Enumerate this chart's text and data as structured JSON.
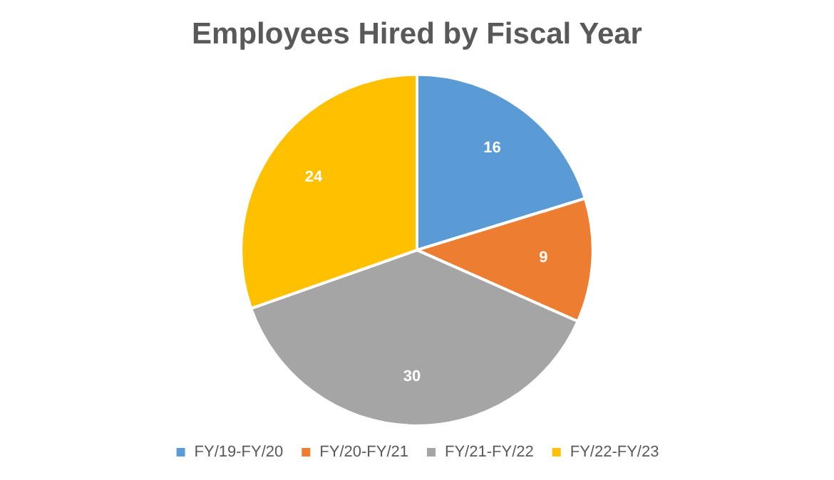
{
  "chart_data": {
    "type": "pie",
    "title": "Employees Hired by Fiscal Year",
    "categories": [
      "FY/19-FY/20",
      "FY/20-FY/21",
      "FY/21-FY/22",
      "FY/22-FY/23"
    ],
    "values": [
      16,
      9,
      30,
      24
    ],
    "colors": [
      "#5b9bd5",
      "#ed7d31",
      "#a5a5a5",
      "#ffc000"
    ],
    "data_labels": true,
    "legend": "bottom"
  }
}
